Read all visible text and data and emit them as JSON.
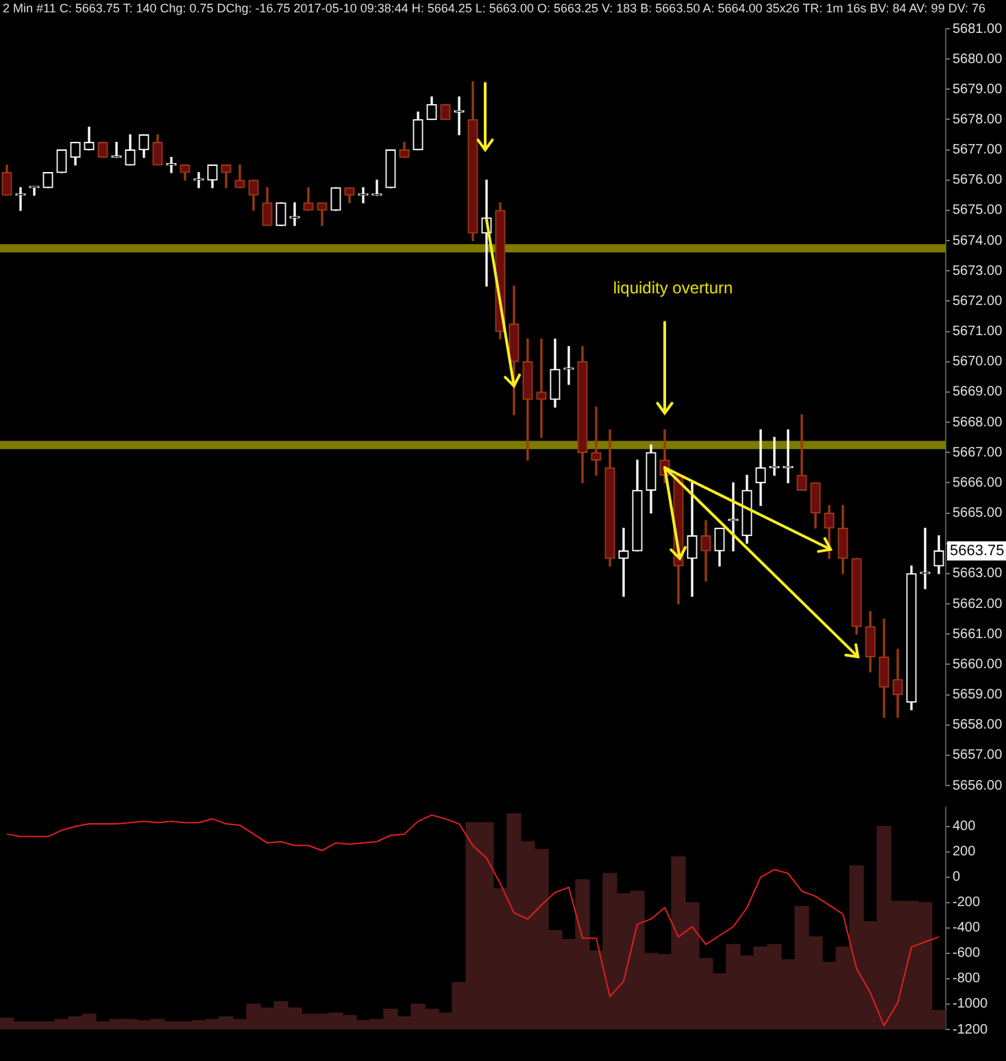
{
  "chart_data": [
    {
      "type": "candlestick",
      "title": "2 Min #11 C: 5663.75 T: 140 Chg: 0.75 DChg: -16.75 2017-05-10 09:38:44 H: 5664.25 L: 5663.00 O: 5663.25 V: 183 B: 5663.50 A: 5664.00 35x26 TR: 1m 16s BV: 84 AV: 99 DV: 76",
      "categories": [
        null,
        null,
        null,
        null,
        null,
        null,
        null,
        null,
        null,
        null,
        null,
        null,
        null,
        null,
        null,
        null,
        null,
        null,
        null,
        null,
        null,
        null,
        null,
        null,
        null,
        null,
        null,
        null,
        null,
        null,
        null,
        null,
        null,
        null,
        null,
        null,
        null,
        null,
        null,
        null,
        null,
        null,
        null,
        null,
        null,
        null,
        null,
        null,
        null,
        null,
        null,
        null,
        null,
        null,
        null,
        null,
        null,
        null,
        null,
        null,
        null,
        null,
        null,
        null,
        null,
        null,
        null,
        null,
        null
      ],
      "ohlc": [
        [
          5676.25,
          5676.5,
          5675.5,
          5675.5
        ],
        [
          5675.5,
          5675.75,
          5675.0,
          5675.5
        ],
        [
          5675.75,
          5675.75,
          5675.5,
          5675.75
        ],
        [
          5675.75,
          5676.25,
          5675.75,
          5676.25
        ],
        [
          5676.25,
          5677.0,
          5676.25,
          5677.0
        ],
        [
          5676.75,
          5677.25,
          5676.5,
          5677.25
        ],
        [
          5677.0,
          5677.75,
          5677.0,
          5677.25
        ],
        [
          5677.25,
          5677.25,
          5676.75,
          5676.75
        ],
        [
          5676.75,
          5677.25,
          5676.75,
          5676.75
        ],
        [
          5676.5,
          5677.5,
          5676.5,
          5677.0
        ],
        [
          5677.0,
          5677.5,
          5676.75,
          5677.5
        ],
        [
          5677.25,
          5677.5,
          5676.5,
          5676.5
        ],
        [
          5676.5,
          5676.75,
          5676.25,
          5676.5
        ],
        [
          5676.5,
          5676.5,
          5676.0,
          5676.25
        ],
        [
          5676.0,
          5676.25,
          5675.75,
          5676.0
        ],
        [
          5676.0,
          5676.5,
          5675.75,
          5676.5
        ],
        [
          5676.5,
          5676.5,
          5675.75,
          5676.25
        ],
        [
          5676.0,
          5676.5,
          5675.75,
          5675.75
        ],
        [
          5676.0,
          5676.0,
          5675.0,
          5675.5
        ],
        [
          5675.25,
          5675.75,
          5674.5,
          5674.5
        ],
        [
          5674.5,
          5675.25,
          5674.5,
          5675.25
        ],
        [
          5674.75,
          5675.25,
          5674.5,
          5674.75
        ],
        [
          5675.25,
          5675.75,
          5675.0,
          5675.0
        ],
        [
          5675.25,
          5675.25,
          5674.5,
          5675.0
        ],
        [
          5675.0,
          5675.75,
          5675.0,
          5675.75
        ],
        [
          5675.75,
          5675.75,
          5675.25,
          5675.5
        ],
        [
          5675.5,
          5675.75,
          5675.25,
          5675.5
        ],
        [
          5675.5,
          5676.0,
          5675.5,
          5675.5
        ],
        [
          5675.75,
          5677.0,
          5675.75,
          5677.0
        ],
        [
          5677.0,
          5677.25,
          5676.75,
          5676.75
        ],
        [
          5677.0,
          5678.25,
          5677.0,
          5678.0
        ],
        [
          5678.0,
          5678.75,
          5678.0,
          5678.5
        ],
        [
          5678.5,
          5678.5,
          5678.0,
          5678.0
        ],
        [
          5678.25,
          5678.75,
          5677.5,
          5678.25
        ],
        [
          5678.0,
          5679.25,
          5674.0,
          5674.25
        ],
        [
          5674.25,
          5676.0,
          5672.5,
          5674.75
        ],
        [
          5675.0,
          5675.25,
          5670.75,
          5671.0
        ],
        [
          5671.25,
          5672.5,
          5668.25,
          5670.0
        ],
        [
          5670.0,
          5670.75,
          5666.75,
          5668.75
        ],
        [
          5669.0,
          5670.75,
          5667.5,
          5668.75
        ],
        [
          5668.75,
          5670.75,
          5668.5,
          5669.75
        ],
        [
          5669.75,
          5670.5,
          5669.25,
          5669.75
        ],
        [
          5670.0,
          5670.5,
          5666.0,
          5667.0
        ],
        [
          5667.0,
          5668.5,
          5666.25,
          5666.75
        ],
        [
          5666.5,
          5667.75,
          5663.25,
          5663.5
        ],
        [
          5663.5,
          5664.5,
          5662.25,
          5663.75
        ],
        [
          5663.75,
          5666.75,
          5663.75,
          5665.75
        ],
        [
          5665.75,
          5667.25,
          5665.0,
          5667.0
        ],
        [
          5666.75,
          5667.75,
          5666.0,
          5666.25
        ],
        [
          5666.25,
          5666.25,
          5662.0,
          5663.25
        ],
        [
          5663.5,
          5666.0,
          5662.25,
          5664.25
        ],
        [
          5664.25,
          5664.75,
          5662.75,
          5663.75
        ],
        [
          5663.75,
          5664.5,
          5663.25,
          5664.5
        ],
        [
          5664.75,
          5666.0,
          5663.75,
          5664.75
        ],
        [
          5664.25,
          5666.25,
          5664.0,
          5665.75
        ],
        [
          5666.0,
          5667.75,
          5665.25,
          5666.5
        ],
        [
          5666.5,
          5667.5,
          5666.25,
          5666.5
        ],
        [
          5666.5,
          5667.75,
          5666.0,
          5666.5
        ],
        [
          5666.25,
          5668.25,
          5665.75,
          5665.75
        ],
        [
          5666.0,
          5666.0,
          5664.5,
          5665.0
        ],
        [
          5665.0,
          5665.25,
          5663.5,
          5664.5
        ],
        [
          5664.5,
          5665.25,
          5663.0,
          5663.5
        ],
        [
          5663.5,
          5663.5,
          5661.0,
          5661.25
        ],
        [
          5661.25,
          5661.75,
          5659.75,
          5660.25
        ],
        [
          5660.25,
          5661.5,
          5658.25,
          5659.25
        ],
        [
          5659.5,
          5660.5,
          5658.25,
          5659.0
        ],
        [
          5658.75,
          5663.25,
          5658.5,
          5663.0
        ],
        [
          5663.0,
          5664.5,
          5662.5,
          5663.0
        ],
        [
          5663.25,
          5664.25,
          5663.0,
          5663.75
        ]
      ],
      "ylim": [
        5656,
        5681
      ],
      "yticks": [
        {
          "value": 5656,
          "label": "5656.00"
        },
        {
          "value": 5657,
          "label": "5657.00"
        },
        {
          "value": 5658,
          "label": "5658.00"
        },
        {
          "value": 5659,
          "label": "5659.00"
        },
        {
          "value": 5660,
          "label": "5660.00"
        },
        {
          "value": 5661,
          "label": "5661.00"
        },
        {
          "value": 5662,
          "label": "5662.00"
        },
        {
          "value": 5663,
          "label": "5663.00"
        },
        {
          "value": 5664,
          "label": null
        },
        {
          "value": 5665,
          "label": "5665.00"
        },
        {
          "value": 5666,
          "label": "5666.00"
        },
        {
          "value": 5667,
          "label": "5667.00"
        },
        {
          "value": 5668,
          "label": "5668.00"
        },
        {
          "value": 5669,
          "label": "5669.00"
        },
        {
          "value": 5670,
          "label": "5670.00"
        },
        {
          "value": 5671,
          "label": "5671.00"
        },
        {
          "value": 5672,
          "label": "5672.00"
        },
        {
          "value": 5673,
          "label": "5673.00"
        },
        {
          "value": 5674,
          "label": "5674.00"
        },
        {
          "value": 5675,
          "label": "5675.00"
        },
        {
          "value": 5676,
          "label": "5676.00"
        },
        {
          "value": 5677,
          "label": "5677.00"
        },
        {
          "value": 5678,
          "label": "5678.00"
        },
        {
          "value": 5679,
          "label": "5679.00"
        },
        {
          "value": 5680,
          "label": "5680.00"
        },
        {
          "value": 5681,
          "label": "5681.00"
        }
      ],
      "ref_lines": [
        {
          "axis": "y",
          "value": 5673.75,
          "color": "#7f7a00"
        },
        {
          "axis": "y",
          "value": 5667.25,
          "color": "#7f7a00"
        }
      ],
      "annotations": [
        "liquidity overturn",
        {
          "text": "5663.75",
          "y": 5663.75
        }
      ],
      "tick_labels": "y",
      "grid": false,
      "legend": false
    },
    {
      "type": "bar",
      "categories": [
        null,
        null,
        null,
        null,
        null,
        null,
        null,
        null,
        null,
        null,
        null,
        null,
        null,
        null,
        null,
        null,
        null,
        null,
        null,
        null,
        null,
        null,
        null,
        null,
        null,
        null,
        null,
        null,
        null,
        null,
        null,
        null,
        null,
        null,
        null,
        null,
        null,
        null,
        null,
        null,
        null,
        null,
        null,
        null,
        null,
        null,
        null,
        null,
        null,
        null,
        null,
        null,
        null,
        null,
        null,
        null,
        null,
        null,
        null,
        null,
        null,
        null,
        null,
        null,
        null,
        null,
        null,
        null,
        null
      ],
      "series": [
        {
          "type": "bar",
          "color": "#3d1818",
          "base": [
            -1200,
            -1200,
            -1200,
            -1200,
            -1200,
            -1200,
            -1200,
            -1200,
            -1200,
            -1200,
            -1200,
            -1200,
            -1200,
            -1200,
            -1200,
            -1200,
            -1200,
            -1200,
            -1200,
            -1200,
            -1200,
            -1200,
            -1200,
            -1200,
            -1200,
            -1200,
            -1200,
            -1200,
            -1200,
            -1200,
            -1200,
            -1200,
            -1200,
            -1200,
            -1200,
            -1200,
            -1200,
            -1200,
            -1200,
            -1200,
            -1200,
            -1200,
            -1200,
            -1200,
            -1200,
            -1200,
            -1200,
            -1200,
            -1200,
            -1200,
            -1200,
            -1200,
            -1200,
            -1200,
            -1200,
            -1200,
            -1200,
            -1200,
            -1200,
            -1200,
            -1200,
            -1200,
            -1200,
            -1200,
            -1200,
            -1200,
            -1200,
            -1200,
            -1200
          ],
          "values": [
            90,
            60,
            60,
            60,
            80,
            100,
            120,
            60,
            80,
            80,
            70,
            80,
            60,
            60,
            70,
            80,
            100,
            80,
            200,
            170,
            220,
            170,
            120,
            120,
            130,
            110,
            70,
            80,
            160,
            100,
            200,
            160,
            130,
            370,
            1630,
            1630,
            1110,
            1700,
            1480,
            1420,
            780,
            710,
            1180,
            620,
            1230,
            1070,
            1090,
            600,
            590,
            1360,
            1000,
            560,
            440,
            670,
            580,
            650,
            670,
            550,
            970,
            730,
            530,
            650,
            1290,
            850,
            1600,
            1010,
            1010,
            1000,
            150
          ]
        },
        {
          "type": "line",
          "color": "#e02020",
          "values": [
            340,
            320,
            320,
            320,
            370,
            400,
            420,
            420,
            420,
            430,
            440,
            430,
            440,
            430,
            430,
            460,
            420,
            410,
            340,
            270,
            280,
            250,
            250,
            210,
            270,
            260,
            270,
            280,
            330,
            340,
            440,
            490,
            460,
            420,
            250,
            150,
            -50,
            -280,
            -330,
            -220,
            -120,
            -80,
            -480,
            -480,
            -940,
            -820,
            -370,
            -330,
            -240,
            -470,
            -390,
            -530,
            -460,
            -390,
            -240,
            0,
            60,
            30,
            -110,
            -150,
            -220,
            -290,
            -720,
            -910,
            -1170,
            -990,
            -550,
            -510,
            -470
          ]
        }
      ],
      "ylim": [
        -1200,
        550
      ],
      "yticks": [
        400,
        200,
        0,
        -200,
        -400,
        -600,
        -800,
        -1000,
        -1200
      ],
      "tick_labels": "y",
      "grid": false,
      "legend": false
    }
  ]
}
